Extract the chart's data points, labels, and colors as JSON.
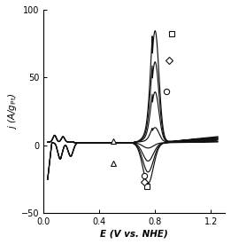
{
  "title": "",
  "xlabel": "E (V vs. NHE)",
  "ylabel": "j (A/g$_{\\rm Pt}$)",
  "xlim": [
    0,
    1.3
  ],
  "ylim": [
    -50,
    100
  ],
  "xticks": [
    0,
    0.4,
    0.8,
    1.2
  ],
  "yticks": [
    -50,
    0,
    50,
    100
  ],
  "line_color": "#111111",
  "background_color": "#ffffff",
  "figsize": [
    2.61,
    2.75
  ],
  "dpi": 100,
  "scales": [
    1.0,
    0.72,
    0.45,
    0.13
  ],
  "markers": [
    "s",
    "D",
    "o",
    "^"
  ],
  "marker_anodic_e": [
    0.92,
    0.9,
    0.88,
    0.5
  ],
  "marker_anodic_j": [
    82,
    63,
    40,
    3
  ],
  "marker_cathodic_e": [
    0.74,
    0.72,
    0.72,
    0.5
  ],
  "marker_cathodic_j": [
    -30,
    -27,
    -22,
    -13
  ]
}
